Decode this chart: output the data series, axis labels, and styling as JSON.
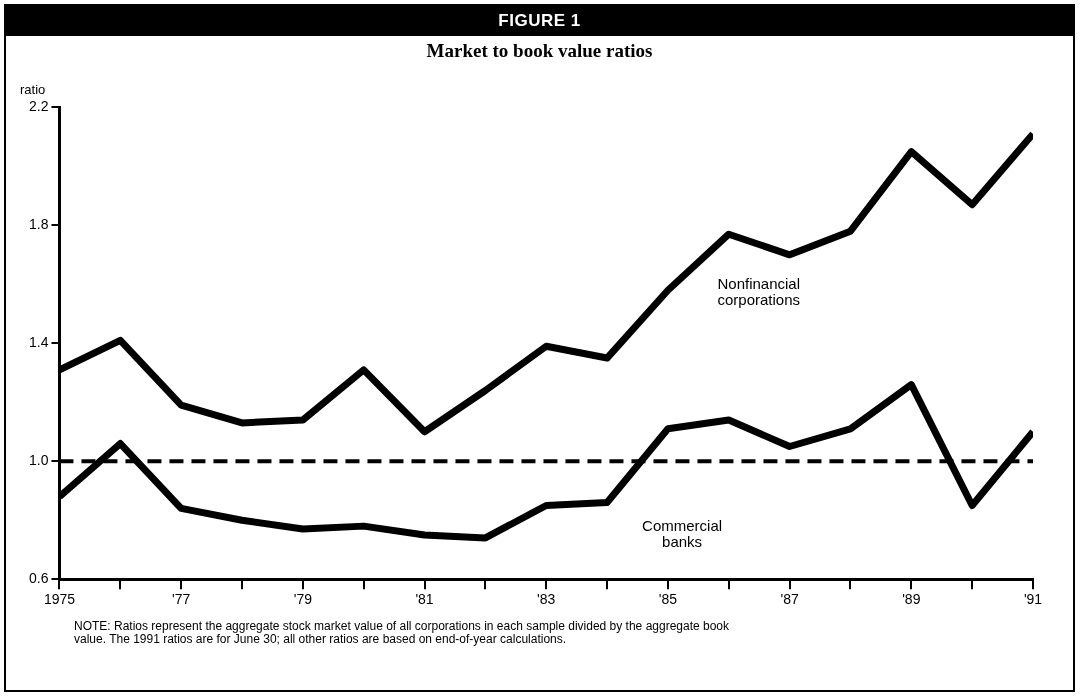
{
  "chart_data": {
    "type": "line",
    "title": "FIGURE 1",
    "subtitle": "Market to book value ratios",
    "ylabel": "ratio",
    "x": [
      1975,
      1976,
      1977,
      1978,
      1979,
      1980,
      1981,
      1982,
      1983,
      1984,
      1985,
      1986,
      1987,
      1988,
      1989,
      1990,
      1991
    ],
    "series": [
      {
        "name": "Nonfinancial corporations",
        "color": "#000000",
        "values": [
          1.31,
          1.41,
          1.19,
          1.13,
          1.14,
          1.31,
          1.1,
          1.24,
          1.39,
          1.35,
          1.58,
          1.77,
          1.7,
          1.78,
          2.05,
          1.87,
          2.11
        ]
      },
      {
        "name": "Commercial banks",
        "color": "#000000",
        "values": [
          0.88,
          1.06,
          0.84,
          0.8,
          0.77,
          0.78,
          0.75,
          0.74,
          0.85,
          0.86,
          1.11,
          1.14,
          1.05,
          1.11,
          1.26,
          0.85,
          1.1
        ]
      }
    ],
    "xlim": [
      1975,
      1991
    ],
    "xticks": [
      {
        "value": 1975,
        "label": "1975"
      },
      {
        "value": 1976,
        "label": null
      },
      {
        "value": 1977,
        "label": "'77"
      },
      {
        "value": 1978,
        "label": null
      },
      {
        "value": 1979,
        "label": "'79"
      },
      {
        "value": 1980,
        "label": null
      },
      {
        "value": 1981,
        "label": "'81"
      },
      {
        "value": 1982,
        "label": null
      },
      {
        "value": 1983,
        "label": "'83"
      },
      {
        "value": 1984,
        "label": null
      },
      {
        "value": 1985,
        "label": "'85"
      },
      {
        "value": 1986,
        "label": null
      },
      {
        "value": 1987,
        "label": "'87"
      },
      {
        "value": 1988,
        "label": null
      },
      {
        "value": 1989,
        "label": "'89"
      },
      {
        "value": 1990,
        "label": null
      },
      {
        "value": 1991,
        "label": "'91"
      }
    ],
    "ylim": [
      0.6,
      2.2
    ],
    "yticks": [
      {
        "value": 0.6,
        "label": "0.6"
      },
      {
        "value": 1.0,
        "label": "1.0"
      },
      {
        "value": 1.4,
        "label": "1.4"
      },
      {
        "value": 1.8,
        "label": "1.8"
      },
      {
        "value": 2.2,
        "label": "2.2"
      }
    ],
    "ref_lines": [
      {
        "axis": "y",
        "value": 1.0,
        "color": "#000000",
        "line_style": "dashed"
      }
    ],
    "grid": false,
    "legend": false,
    "marker": "none",
    "line_style": "solid",
    "annotations": [
      "NOTE: Ratios represent the aggregate stock market value of all corporations in each sample divided by the aggregate book value.  The 1991 ratios are for June 30; all other ratios are based on end-of-year calculations."
    ]
  }
}
